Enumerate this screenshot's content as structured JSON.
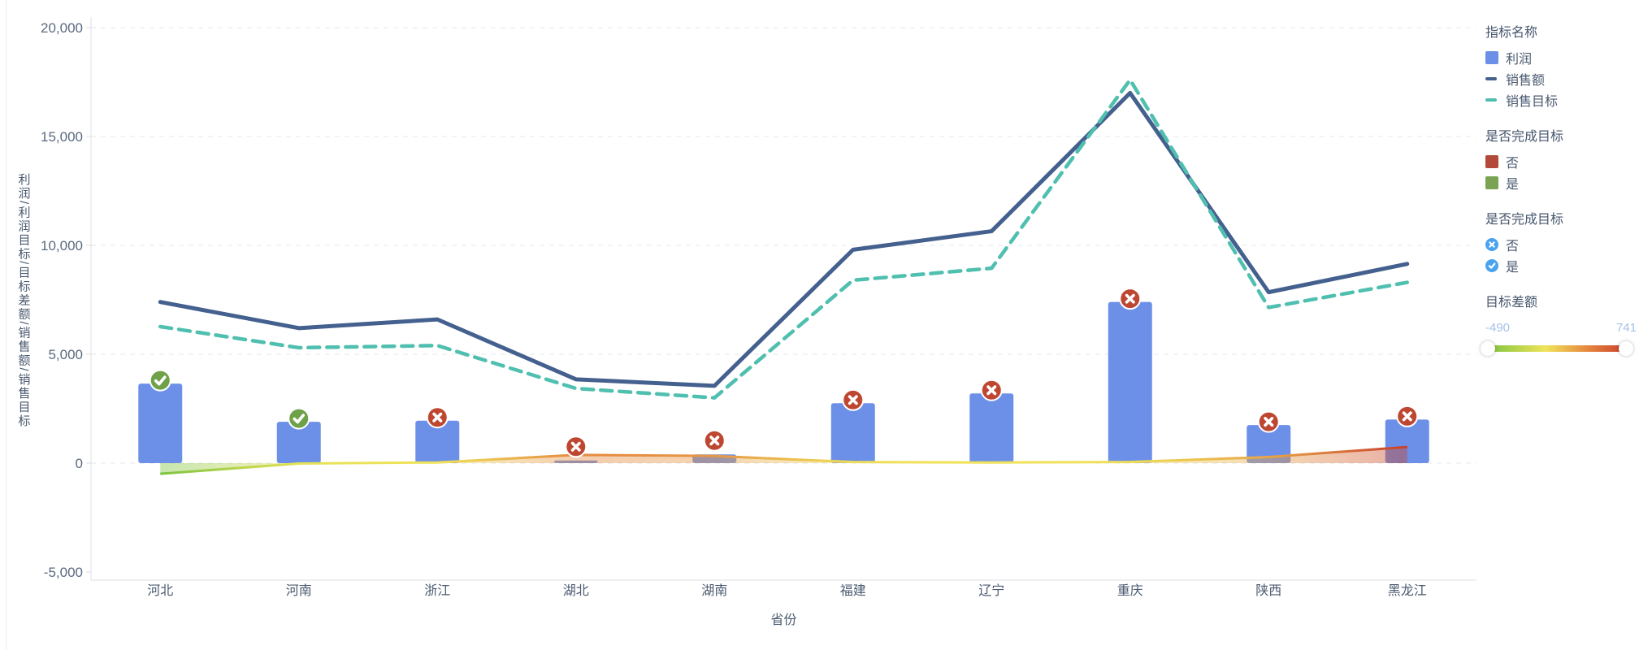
{
  "axis": {
    "y_title": "利润/利润目标/目标差额/销售额/销售目标",
    "x_title": "省份",
    "y_ticks": [
      {
        "label": "20,000",
        "value": 20000
      },
      {
        "label": "15,000",
        "value": 15000
      },
      {
        "label": "10,000",
        "value": 10000
      },
      {
        "label": "5,000",
        "value": 5000
      },
      {
        "label": "0",
        "value": 0
      },
      {
        "label": "-5,000",
        "value": -5000
      }
    ]
  },
  "chart_data": {
    "type": "combo",
    "categories": [
      "河北",
      "河南",
      "浙江",
      "湖北",
      "湖南",
      "福建",
      "辽宁",
      "重庆",
      "陕西",
      "黑龙江"
    ],
    "ylim": [
      -5000,
      20000
    ],
    "grid": true,
    "legend_position": "right",
    "series": [
      {
        "name": "利润",
        "type": "bar",
        "color": "#6c90e8",
        "values": [
          3650,
          1900,
          1950,
          120,
          400,
          2750,
          3200,
          7400,
          1750,
          2000
        ],
        "target_met": [
          "是",
          "是",
          "否",
          "否",
          "否",
          "否",
          "否",
          "否",
          "否",
          "否"
        ]
      },
      {
        "name": "销售额",
        "type": "line",
        "color": "#44608e",
        "values": [
          7400,
          6200,
          6600,
          3850,
          3550,
          9800,
          10650,
          17000,
          7850,
          9150
        ]
      },
      {
        "name": "销售目标",
        "type": "line-dashed",
        "color": "#4fbfaf",
        "values": [
          6270,
          5300,
          5400,
          3430,
          3000,
          8400,
          8950,
          17600,
          7150,
          8300
        ]
      },
      {
        "name": "目标差额",
        "type": "area-gradient",
        "scale_min": -490,
        "scale_max": 741,
        "gradient_anchors": [
          "#7cc340",
          "#f0e459",
          "#e5863f",
          "#c9402b"
        ],
        "values": [
          -490,
          -20,
          30,
          380,
          330,
          50,
          30,
          50,
          280,
          741
        ]
      }
    ],
    "badge_colors": {
      "yes": "#6fa149",
      "no": "#be4731"
    }
  },
  "legend": {
    "groups": [
      {
        "title": "指标名称",
        "items": [
          {
            "label": "利润",
            "swatch": "square",
            "color": "#6c90e8"
          },
          {
            "label": "销售额",
            "swatch": "dash",
            "color": "#44608e"
          },
          {
            "label": "销售目标",
            "swatch": "dash",
            "color": "#4fbfaf"
          }
        ]
      },
      {
        "title": "是否完成目标",
        "items": [
          {
            "label": "否",
            "swatch": "square",
            "color": "#b34a39"
          },
          {
            "label": "是",
            "swatch": "square",
            "color": "#7aa353"
          }
        ]
      },
      {
        "title": "是否完成目标",
        "items": [
          {
            "label": "否",
            "swatch": "circle-x",
            "color": "#49a3ef"
          },
          {
            "label": "是",
            "swatch": "circle-check",
            "color": "#49a3ef"
          }
        ]
      },
      {
        "title": "目标差额",
        "type": "gradient",
        "min_label": "-490",
        "max_label": "741",
        "gradient_css": "linear-gradient(90deg,#7cc340 0%,#f0e459 42%,#e5863f 72%,#c9402b 100%)"
      }
    ]
  }
}
